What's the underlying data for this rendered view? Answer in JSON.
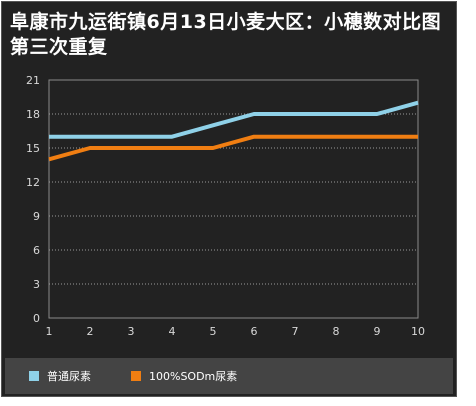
{
  "chart_data": {
    "type": "line",
    "title": "阜康市九运街镇6月13日小麦大区：小穗数对比图第三次重复",
    "xlabel": "",
    "ylabel": "",
    "categories": [
      "1",
      "2",
      "3",
      "4",
      "5",
      "6",
      "7",
      "8",
      "9",
      "10"
    ],
    "x_ticks": [
      "1",
      "2",
      "3",
      "4",
      "5",
      "6",
      "7",
      "8",
      "9",
      "10"
    ],
    "y_ticks": [
      "0",
      "3",
      "6",
      "9",
      "12",
      "15",
      "18",
      "21"
    ],
    "ylim": [
      0,
      21
    ],
    "grid": "horizontal dotted",
    "legend_position": "bottom",
    "series": [
      {
        "name": "普通尿素",
        "color": "#8fd1e8",
        "values": [
          16,
          16,
          16,
          16,
          17,
          18,
          18,
          18,
          18,
          19
        ]
      },
      {
        "name": "100%SODm尿素",
        "color": "#f07e12",
        "values": [
          14,
          15,
          15,
          15,
          15,
          16,
          16,
          16,
          16,
          16
        ]
      }
    ]
  }
}
